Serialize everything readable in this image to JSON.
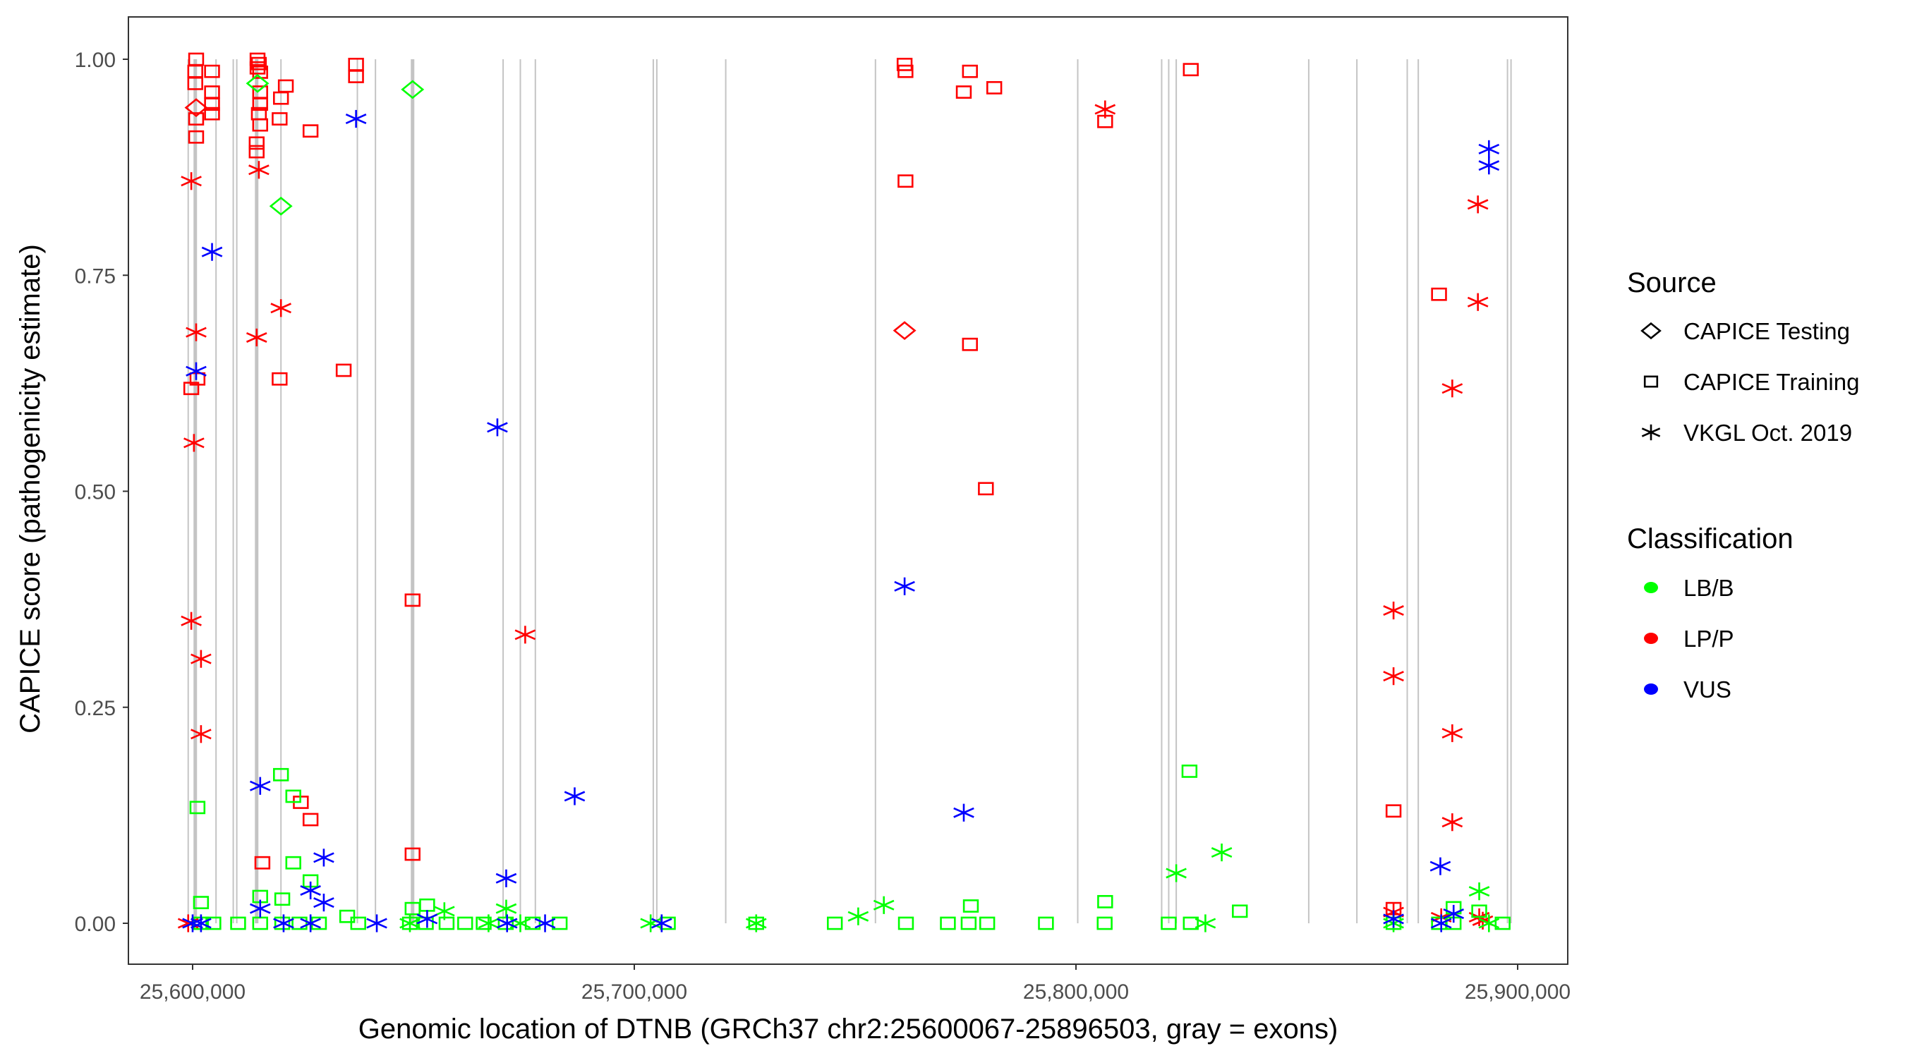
{
  "chart_data": {
    "type": "scatter",
    "xlabel": "Genomic location of DTNB (GRCh37 chr2:25600067-25896503, gray = exons)",
    "ylabel": "CAPICE score (pathogenicity estimate)",
    "xlim": [
      25585000,
      25910000
    ],
    "ylim": [
      -0.05,
      1.05
    ],
    "x_ticks": [
      25600000,
      25700000,
      25800000,
      25900000
    ],
    "x_tick_labels": [
      "25,600,000",
      "25,700,000",
      "25,800,000",
      "25,900,000"
    ],
    "y_ticks": [
      0,
      0.25,
      0.5,
      0.75,
      1.0
    ],
    "y_tick_labels": [
      "0.00",
      "0.25",
      "0.50",
      "0.75",
      "1.00"
    ],
    "grid": false,
    "exons": [
      25599000,
      25600600,
      25605300,
      25609200,
      25610000,
      25614500,
      25620000,
      25637300,
      25641400,
      25649800,
      25670300,
      25674200,
      25677600,
      25704300,
      25705100,
      25720700,
      25754600,
      25800400,
      25819400,
      25821000,
      25822700,
      25852700,
      25863600,
      25875000,
      25877500,
      25897700,
      25898500
    ],
    "thick_exons": [
      25600600,
      25649800,
      25614500
    ],
    "legend": {
      "placement": "right",
      "source_title": "Source",
      "source_items": [
        {
          "key": "testing",
          "label": "CAPICE Testing",
          "icon": "diamond"
        },
        {
          "key": "training",
          "label": "CAPICE Training",
          "icon": "square"
        },
        {
          "key": "vkgl",
          "label": "VKGL Oct. 2019",
          "icon": "asterisk"
        }
      ],
      "class_title": "Classification",
      "class_items": [
        {
          "key": "LB/B",
          "label": "LB/B",
          "color": "#00ff00"
        },
        {
          "key": "LP/P",
          "label": "LP/P",
          "color": "#ff0000"
        },
        {
          "key": "VUS",
          "label": "VUS",
          "color": "#0000ff"
        }
      ]
    },
    "points": [
      [
        25600800,
        1.0,
        "training",
        "LP/P"
      ],
      [
        25600600,
        0.986,
        "training",
        "LP/P"
      ],
      [
        25600600,
        0.972,
        "training",
        "LP/P"
      ],
      [
        25600800,
        0.931,
        "training",
        "LP/P"
      ],
      [
        25600800,
        0.91,
        "training",
        "LP/P"
      ],
      [
        25604400,
        0.986,
        "training",
        "LP/P"
      ],
      [
        25604400,
        0.962,
        "training",
        "LP/P"
      ],
      [
        25604400,
        0.948,
        "training",
        "LP/P"
      ],
      [
        25604400,
        0.937,
        "training",
        "LP/P"
      ],
      [
        25599700,
        0.619,
        "training",
        "LP/P"
      ],
      [
        25601100,
        0.63,
        "training",
        "LP/P"
      ],
      [
        25614700,
        1.0,
        "training",
        "LP/P"
      ],
      [
        25615000,
        0.995,
        "training",
        "LP/P"
      ],
      [
        25614700,
        0.99,
        "training",
        "LP/P"
      ],
      [
        25615300,
        0.985,
        "training",
        "LP/P"
      ],
      [
        25615300,
        0.962,
        "training",
        "LP/P"
      ],
      [
        25615300,
        0.948,
        "training",
        "LP/P"
      ],
      [
        25615000,
        0.937,
        "training",
        "LP/P"
      ],
      [
        25614500,
        0.903,
        "training",
        "LP/P"
      ],
      [
        25614500,
        0.893,
        "training",
        "LP/P"
      ],
      [
        25615300,
        0.924,
        "training",
        "LP/P"
      ],
      [
        25620000,
        0.955,
        "training",
        "LP/P"
      ],
      [
        25621100,
        0.969,
        "training",
        "LP/P"
      ],
      [
        25619700,
        0.931,
        "training",
        "LP/P"
      ],
      [
        25626700,
        0.917,
        "training",
        "LP/P"
      ],
      [
        25619700,
        0.63,
        "training",
        "LP/P"
      ],
      [
        25634200,
        0.64,
        "training",
        "LP/P"
      ],
      [
        25637000,
        0.994,
        "training",
        "LP/P"
      ],
      [
        25637000,
        0.98,
        "training",
        "LP/P"
      ],
      [
        25649800,
        0.374,
        "training",
        "LP/P"
      ],
      [
        25649800,
        0.08,
        "training",
        "LP/P"
      ],
      [
        25615800,
        0.07,
        "training",
        "LP/P"
      ],
      [
        25624500,
        0.14,
        "training",
        "LP/P"
      ],
      [
        25626700,
        0.12,
        "training",
        "LP/P"
      ],
      [
        25761200,
        0.994,
        "training",
        "LP/P"
      ],
      [
        25761400,
        0.986,
        "training",
        "LP/P"
      ],
      [
        25761400,
        0.859,
        "training",
        "LP/P"
      ],
      [
        25776000,
        0.986,
        "training",
        "LP/P"
      ],
      [
        25774600,
        0.962,
        "training",
        "LP/P"
      ],
      [
        25781500,
        0.967,
        "training",
        "LP/P"
      ],
      [
        25776000,
        0.67,
        "training",
        "LP/P"
      ],
      [
        25779600,
        0.503,
        "training",
        "LP/P"
      ],
      [
        25806600,
        0.928,
        "training",
        "LP/P"
      ],
      [
        25826000,
        0.988,
        "training",
        "LP/P"
      ],
      [
        25882200,
        0.728,
        "training",
        "LP/P"
      ],
      [
        25871900,
        0.13,
        "training",
        "LP/P"
      ],
      [
        25871900,
        0.017,
        "training",
        "LP/P"
      ],
      [
        25600800,
        0.944,
        "testing",
        "LP/P"
      ],
      [
        25761200,
        0.686,
        "testing",
        "LP/P"
      ],
      [
        25599700,
        0.859,
        "vkgl",
        "LP/P"
      ],
      [
        25600300,
        0.556,
        "vkgl",
        "LP/P"
      ],
      [
        25599700,
        0.35,
        "vkgl",
        "LP/P"
      ],
      [
        25600800,
        0.684,
        "vkgl",
        "LP/P"
      ],
      [
        25601900,
        0.306,
        "vkgl",
        "LP/P"
      ],
      [
        25601900,
        0.219,
        "vkgl",
        "LP/P"
      ],
      [
        25615000,
        0.872,
        "vkgl",
        "LP/P"
      ],
      [
        25614500,
        0.678,
        "vkgl",
        "LP/P"
      ],
      [
        25620000,
        0.712,
        "vkgl",
        "LP/P"
      ],
      [
        25675300,
        0.334,
        "vkgl",
        "LP/P"
      ],
      [
        25806600,
        0.942,
        "vkgl",
        "LP/P"
      ],
      [
        25871900,
        0.362,
        "vkgl",
        "LP/P"
      ],
      [
        25871900,
        0.286,
        "vkgl",
        "LP/P"
      ],
      [
        25891000,
        0.832,
        "vkgl",
        "LP/P"
      ],
      [
        25891000,
        0.719,
        "vkgl",
        "LP/P"
      ],
      [
        25885200,
        0.619,
        "vkgl",
        "LP/P"
      ],
      [
        25885200,
        0.22,
        "vkgl",
        "LP/P"
      ],
      [
        25885200,
        0.117,
        "vkgl",
        "LP/P"
      ],
      [
        25871900,
        0.013,
        "vkgl",
        "LP/P"
      ],
      [
        25882700,
        0.007,
        "vkgl",
        "LP/P"
      ],
      [
        25891300,
        0.007,
        "vkgl",
        "LP/P"
      ],
      [
        25892100,
        0.003,
        "vkgl",
        "LP/P"
      ],
      [
        25599000,
        0.0,
        "vkgl",
        "LP/P"
      ],
      [
        25614700,
        0.972,
        "testing",
        "LB/B"
      ],
      [
        25620000,
        0.83,
        "testing",
        "LB/B"
      ],
      [
        25649800,
        0.965,
        "testing",
        "LB/B"
      ],
      [
        25601100,
        0.134,
        "training",
        "LB/B"
      ],
      [
        25620000,
        0.172,
        "training",
        "LB/B"
      ],
      [
        25622800,
        0.147,
        "training",
        "LB/B"
      ],
      [
        25622800,
        0.07,
        "training",
        "LB/B"
      ],
      [
        25626700,
        0.049,
        "training",
        "LB/B"
      ],
      [
        25601900,
        0.024,
        "training",
        "LB/B"
      ],
      [
        25615300,
        0.031,
        "training",
        "LB/B"
      ],
      [
        25620300,
        0.028,
        "training",
        "LB/B"
      ],
      [
        25635000,
        0.008,
        "training",
        "LB/B"
      ],
      [
        25649800,
        0.017,
        "training",
        "LB/B"
      ],
      [
        25653100,
        0.021,
        "training",
        "LB/B"
      ],
      [
        25825700,
        0.176,
        "training",
        "LB/B"
      ],
      [
        25806600,
        0.025,
        "training",
        "LB/B"
      ],
      [
        25776200,
        0.02,
        "training",
        "LB/B"
      ],
      [
        25837100,
        0.014,
        "training",
        "LB/B"
      ],
      [
        25885500,
        0.018,
        "training",
        "LB/B"
      ],
      [
        25891300,
        0.014,
        "training",
        "LB/B"
      ],
      [
        25601900,
        0.0,
        "training",
        "LB/B"
      ],
      [
        25604700,
        0.0,
        "training",
        "LB/B"
      ],
      [
        25610300,
        0.0,
        "training",
        "LB/B"
      ],
      [
        25615300,
        0.0,
        "training",
        "LB/B"
      ],
      [
        25620300,
        0.0,
        "training",
        "LB/B"
      ],
      [
        25624200,
        0.0,
        "training",
        "LB/B"
      ],
      [
        25628600,
        0.0,
        "training",
        "LB/B"
      ],
      [
        25637500,
        0.0,
        "training",
        "LB/B"
      ],
      [
        25649200,
        0.0,
        "training",
        "LB/B"
      ],
      [
        25652800,
        0.0,
        "training",
        "LB/B"
      ],
      [
        25657500,
        0.0,
        "training",
        "LB/B"
      ],
      [
        25661700,
        0.0,
        "training",
        "LB/B"
      ],
      [
        25665900,
        0.0,
        "training",
        "LB/B"
      ],
      [
        25670900,
        0.0,
        "training",
        "LB/B"
      ],
      [
        25677000,
        0.0,
        "training",
        "LB/B"
      ],
      [
        25683100,
        0.0,
        "training",
        "LB/B"
      ],
      [
        25707600,
        0.0,
        "training",
        "LB/B"
      ],
      [
        25727600,
        0.0,
        "training",
        "LB/B"
      ],
      [
        25745400,
        0.0,
        "training",
        "LB/B"
      ],
      [
        25761500,
        0.0,
        "training",
        "LB/B"
      ],
      [
        25771000,
        0.0,
        "training",
        "LB/B"
      ],
      [
        25775700,
        0.0,
        "training",
        "LB/B"
      ],
      [
        25779900,
        0.0,
        "training",
        "LB/B"
      ],
      [
        25793200,
        0.0,
        "training",
        "LB/B"
      ],
      [
        25806500,
        0.0,
        "training",
        "LB/B"
      ],
      [
        25821000,
        0.0,
        "training",
        "LB/B"
      ],
      [
        25826000,
        0.0,
        "training",
        "LB/B"
      ],
      [
        25871900,
        0.0,
        "training",
        "LB/B"
      ],
      [
        25882200,
        0.0,
        "training",
        "LB/B"
      ],
      [
        25885500,
        0.0,
        "training",
        "LB/B"
      ],
      [
        25896600,
        0.0,
        "training",
        "LB/B"
      ],
      [
        25822700,
        0.058,
        "vkgl",
        "LB/B"
      ],
      [
        25833000,
        0.082,
        "vkgl",
        "LB/B"
      ],
      [
        25756500,
        0.021,
        "vkgl",
        "LB/B"
      ],
      [
        25750700,
        0.008,
        "vkgl",
        "LB/B"
      ],
      [
        25891300,
        0.037,
        "vkgl",
        "LB/B"
      ],
      [
        25657000,
        0.014,
        "vkgl",
        "LB/B"
      ],
      [
        25671000,
        0.017,
        "vkgl",
        "LB/B"
      ],
      [
        25703700,
        0.0,
        "vkgl",
        "LB/B"
      ],
      [
        25727600,
        0.0,
        "vkgl",
        "LB/B"
      ],
      [
        25829300,
        0.0,
        "vkgl",
        "LB/B"
      ],
      [
        25649200,
        0.0,
        "vkgl",
        "LB/B"
      ],
      [
        25667000,
        0.0,
        "vkgl",
        "LB/B"
      ],
      [
        25674200,
        0.0,
        "vkgl",
        "LB/B"
      ],
      [
        25871900,
        0.0,
        "vkgl",
        "LB/B"
      ],
      [
        25893500,
        0.0,
        "vkgl",
        "LB/B"
      ],
      [
        25604400,
        0.777,
        "vkgl",
        "VUS"
      ],
      [
        25600800,
        0.639,
        "vkgl",
        "VUS"
      ],
      [
        25637000,
        0.931,
        "vkgl",
        "VUS"
      ],
      [
        25669000,
        0.574,
        "vkgl",
        "VUS"
      ],
      [
        25686500,
        0.147,
        "vkgl",
        "VUS"
      ],
      [
        25671000,
        0.052,
        "vkgl",
        "VUS"
      ],
      [
        25761200,
        0.39,
        "vkgl",
        "VUS"
      ],
      [
        25774600,
        0.128,
        "vkgl",
        "VUS"
      ],
      [
        25615300,
        0.159,
        "vkgl",
        "VUS"
      ],
      [
        25629700,
        0.076,
        "vkgl",
        "VUS"
      ],
      [
        25626700,
        0.038,
        "vkgl",
        "VUS"
      ],
      [
        25629700,
        0.024,
        "vkgl",
        "VUS"
      ],
      [
        25615300,
        0.017,
        "vkgl",
        "VUS"
      ],
      [
        25893500,
        0.896,
        "vkgl",
        "VUS"
      ],
      [
        25893500,
        0.877,
        "vkgl",
        "VUS"
      ],
      [
        25882500,
        0.066,
        "vkgl",
        "VUS"
      ],
      [
        25885500,
        0.011,
        "vkgl",
        "VUS"
      ],
      [
        25600000,
        0.0,
        "vkgl",
        "VUS"
      ],
      [
        25601900,
        0.0,
        "vkgl",
        "VUS"
      ],
      [
        25620600,
        0.0,
        "vkgl",
        "VUS"
      ],
      [
        25626700,
        0.0,
        "vkgl",
        "VUS"
      ],
      [
        25641700,
        0.0,
        "vkgl",
        "VUS"
      ],
      [
        25653100,
        0.005,
        "vkgl",
        "VUS"
      ],
      [
        25671200,
        0.0,
        "vkgl",
        "VUS"
      ],
      [
        25679800,
        0.0,
        "vkgl",
        "VUS"
      ],
      [
        25706200,
        0.0,
        "vkgl",
        "VUS"
      ],
      [
        25871900,
        0.005,
        "vkgl",
        "VUS"
      ],
      [
        25882700,
        0.0,
        "vkgl",
        "VUS"
      ]
    ]
  }
}
